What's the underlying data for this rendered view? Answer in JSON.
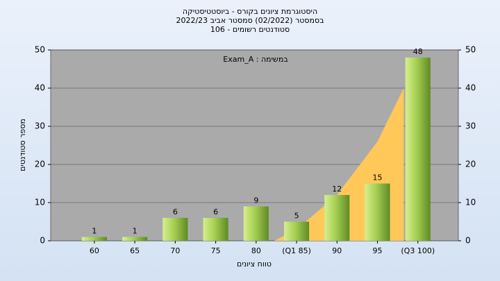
{
  "chart_data": {
    "type": "bar",
    "title": [
      "היסטוגרמת ציונים בקורס - ביוסטטיסטיקה",
      "בסמסטר  (02/2022)  סמסטר אביב 2022/23",
      "סטודנטים רשומים - 106"
    ],
    "annotation": "Exam_A : במשימה",
    "x_label": "טווח ציונים",
    "y_label": "מספר סטודנטים",
    "categories": [
      "60",
      "65",
      "70",
      "75",
      "80",
      "(Q1 85)",
      "90",
      "95",
      "(Q3 100)"
    ],
    "values": [
      1,
      1,
      6,
      6,
      9,
      5,
      12,
      15,
      48
    ],
    "color": "#8fbf3f",
    "area": {
      "color": "#ffc858",
      "values": [
        null,
        null,
        null,
        null,
        0,
        3,
        12,
        26,
        40
      ]
    },
    "ylim": [
      0,
      50
    ],
    "yticks": [
      0,
      10,
      20,
      30,
      40,
      50
    ],
    "grid": true
  }
}
